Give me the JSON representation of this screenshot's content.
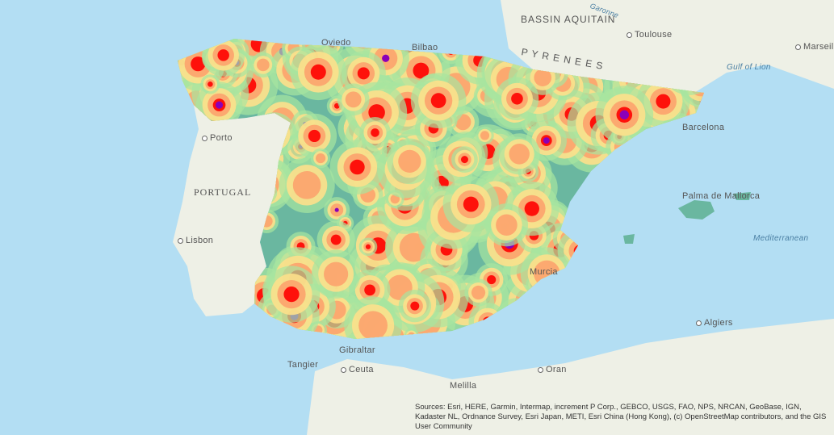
{
  "map": {
    "labels": {
      "bassin_aquitain": "BASSIN AQUITAIN",
      "garonne": "Garonne",
      "toulouse": "Toulouse",
      "marseille": "Marseille",
      "gulf_of_lion": "Gulf of Lion",
      "pyrenees": "P Y R E N E E S",
      "porto": "Porto",
      "portugal": "PORTUGAL",
      "lisbon": "Lisbon",
      "barcelona": "Barcelona",
      "palma": "Palma de Mallorca",
      "mediterranean": "Mediterranean",
      "algiers": "Algiers",
      "oran": "Oran",
      "melilla": "Melilla",
      "ceuta": "Ceuta",
      "tangier": "Tangier",
      "gibraltar": "Gibraltar",
      "murcia": "Murcia",
      "oviedo": "Oviedo",
      "bilbao": "Bilbao"
    },
    "heatmap_colors": [
      "#6ab7a0",
      "#a8e6a0",
      "#fde08b",
      "#fca36d",
      "#fe0000",
      "#8a00b8"
    ],
    "colors": {
      "ocean": "#b3def3",
      "land": "#eef0e6"
    }
  },
  "attribution": "Sources: Esri, HERE, Garmin, Intermap, increment P Corp., GEBCO, USGS, FAO, NPS, NRCAN, GeoBase, IGN, Kadaster NL, Ordnance Survey, Esri Japan, METI, Esri China (Hong Kong), (c) OpenStreetMap contributors, and the GIS User Community"
}
